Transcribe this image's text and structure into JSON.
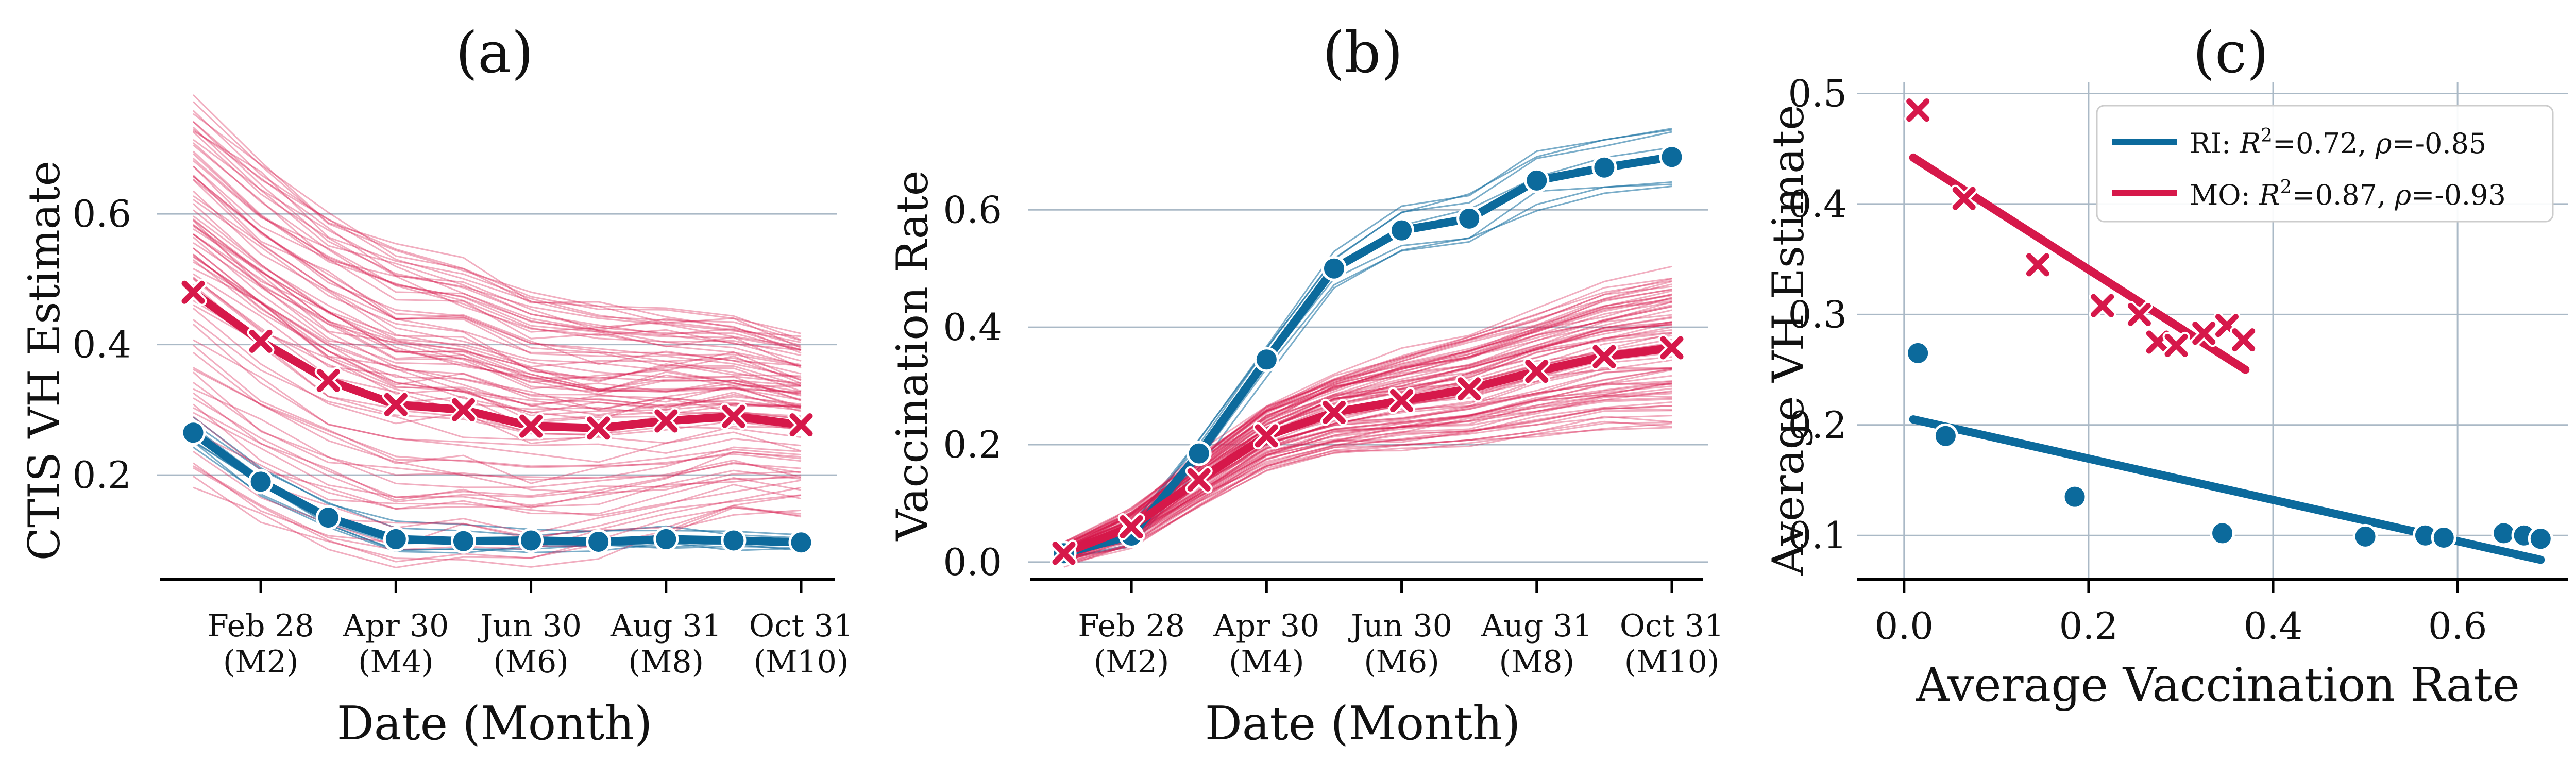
{
  "colors": {
    "ri": "#0c6a9c",
    "mo": "#d6184a",
    "grid": "#aab9c6",
    "axis": "#000000"
  },
  "panel_a": {
    "title": "(a)",
    "ylabel": "CTIS VH Estimate",
    "xlabel": "Date (Month)",
    "ylim": [
      0.04,
      0.75
    ],
    "yticks": [
      0.2,
      0.4,
      0.6
    ],
    "ytick_labels": [
      "0.2",
      "0.4",
      "0.6"
    ],
    "xticks": [
      2,
      4,
      6,
      8,
      10
    ],
    "xtick_labels": [
      [
        "Feb 28",
        "(M2)"
      ],
      [
        "Apr 30",
        "(M4)"
      ],
      [
        "Jun 30",
        "(M6)"
      ],
      [
        "Aug 31",
        "(M8)"
      ],
      [
        "Oct 31",
        "(M10)"
      ]
    ]
  },
  "panel_b": {
    "title": "(b)",
    "ylabel": "Vaccination Rate",
    "xlabel": "Date (Month)",
    "ylim": [
      -0.03,
      0.76
    ],
    "yticks": [
      0.0,
      0.2,
      0.4,
      0.6
    ],
    "ytick_labels": [
      "0.0",
      "0.2",
      "0.4",
      "0.6"
    ],
    "xticks": [
      2,
      4,
      6,
      8,
      10
    ],
    "xtick_labels": [
      [
        "Feb 28",
        "(M2)"
      ],
      [
        "Apr 30",
        "(M4)"
      ],
      [
        "Jun 30",
        "(M6)"
      ],
      [
        "Aug 31",
        "(M8)"
      ],
      [
        "Oct 31",
        "(M10)"
      ]
    ]
  },
  "panel_c": {
    "title": "(c)",
    "ylabel": "Average VH Estimate",
    "xlabel": "Average Vaccination Rate",
    "xlim": [
      -0.02,
      0.72
    ],
    "ylim": [
      0.06,
      0.51
    ],
    "xticks": [
      0.0,
      0.2,
      0.4,
      0.6
    ],
    "xtick_labels": [
      "0.0",
      "0.2",
      "0.4",
      "0.6"
    ],
    "yticks": [
      0.1,
      0.2,
      0.3,
      0.4,
      0.5
    ],
    "ytick_labels": [
      "0.1",
      "0.2",
      "0.3",
      "0.4",
      "0.5"
    ],
    "legend": {
      "position": "top-right",
      "ri": {
        "name": "RI",
        "r2": "=0.72,",
        "rho": "=-0.85"
      },
      "mo": {
        "name": "MO",
        "r2": "=0.87,",
        "rho": "=-0.93"
      }
    }
  },
  "chart_data": [
    {
      "type": "line",
      "title": "(a)",
      "xlabel": "Date (Month)",
      "ylabel": "CTIS VH Estimate",
      "x": [
        1,
        2,
        3,
        4,
        5,
        6,
        7,
        8,
        9,
        10
      ],
      "series": [
        {
          "name": "RI",
          "marker": "circle",
          "values": [
            0.265,
            0.19,
            0.135,
            0.102,
            0.099,
            0.1,
            0.098,
            0.102,
            0.1,
            0.097
          ]
        },
        {
          "name": "MO",
          "marker": "x",
          "values": [
            0.48,
            0.405,
            0.345,
            0.308,
            0.3,
            0.275,
            0.272,
            0.283,
            0.29,
            0.277
          ]
        }
      ],
      "background_lines": "thin per-county trajectories for each state"
    },
    {
      "type": "line",
      "title": "(b)",
      "xlabel": "Date (Month)",
      "ylabel": "Vaccination Rate",
      "x": [
        1,
        2,
        3,
        4,
        5,
        6,
        7,
        8,
        9,
        10
      ],
      "series": [
        {
          "name": "RI",
          "marker": "circle",
          "values": [
            0.015,
            0.045,
            0.185,
            0.345,
            0.5,
            0.565,
            0.585,
            0.65,
            0.672,
            0.69
          ]
        },
        {
          "name": "MO",
          "marker": "x",
          "values": [
            0.015,
            0.06,
            0.14,
            0.215,
            0.255,
            0.275,
            0.295,
            0.325,
            0.35,
            0.365
          ]
        }
      ],
      "background_lines": "thin per-county trajectories for each state"
    },
    {
      "type": "scatter",
      "title": "(c)",
      "xlabel": "Average Vaccination Rate",
      "ylabel": "Average VH Estimate",
      "series": [
        {
          "name": "RI",
          "marker": "circle",
          "points": [
            [
              0.015,
              0.265
            ],
            [
              0.045,
              0.19
            ],
            [
              0.185,
              0.135
            ],
            [
              0.345,
              0.102
            ],
            [
              0.5,
              0.099
            ],
            [
              0.565,
              0.1
            ],
            [
              0.585,
              0.098
            ],
            [
              0.65,
              0.102
            ],
            [
              0.672,
              0.1
            ],
            [
              0.69,
              0.097
            ]
          ],
          "fit": {
            "x": [
              0.01,
              0.69
            ],
            "y": [
              0.205,
              0.078
            ],
            "r2": 0.72,
            "rho": -0.85
          }
        },
        {
          "name": "MO",
          "marker": "x",
          "points": [
            [
              0.015,
              0.485
            ],
            [
              0.065,
              0.405
            ],
            [
              0.145,
              0.345
            ],
            [
              0.215,
              0.308
            ],
            [
              0.255,
              0.3
            ],
            [
              0.275,
              0.275
            ],
            [
              0.295,
              0.272
            ],
            [
              0.325,
              0.283
            ],
            [
              0.35,
              0.29
            ],
            [
              0.368,
              0.277
            ]
          ],
          "fit": {
            "x": [
              0.01,
              0.37
            ],
            "y": [
              0.442,
              0.25
            ],
            "r2": 0.87,
            "rho": -0.93
          }
        }
      ]
    }
  ]
}
